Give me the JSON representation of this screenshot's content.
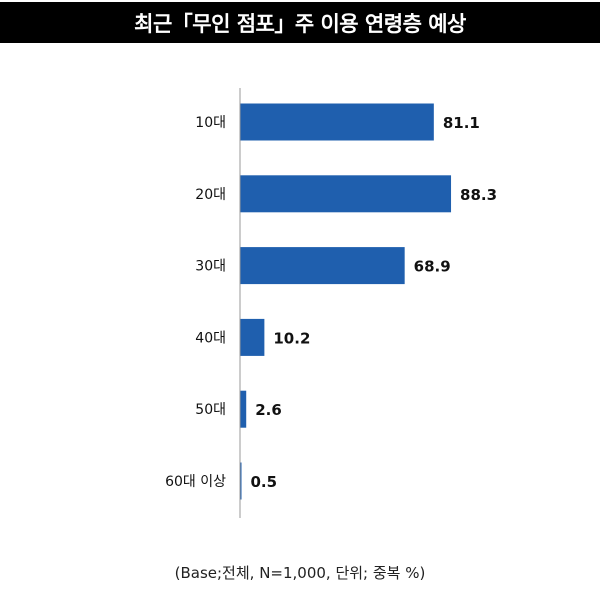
{
  "chart_data": {
    "type": "bar",
    "orientation": "horizontal",
    "title": "최근「무인 점포」주 이용 연령층 예상",
    "categories": [
      "10대",
      "20대",
      "30대",
      "40대",
      "50대",
      "60대 이상"
    ],
    "values": [
      81.1,
      88.3,
      68.9,
      10.2,
      2.6,
      0.5
    ],
    "value_labels": [
      "81.1",
      "88.3",
      "68.9",
      "10.2",
      "2.6",
      "0.5"
    ],
    "xlim": [
      0,
      100
    ],
    "grid": false,
    "bar_color": "#1f5fae",
    "note": "(Base;전체, N=1,000, 단위; 중복 %)"
  }
}
